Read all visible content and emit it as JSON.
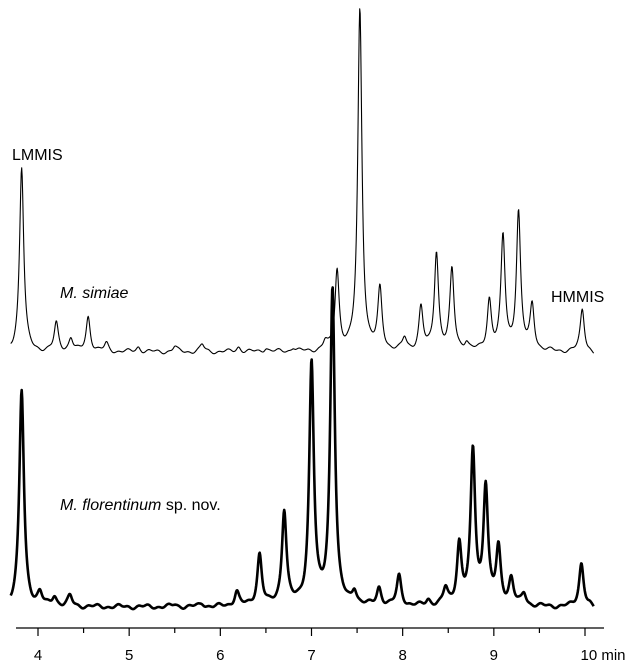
{
  "chart_data": {
    "type": "line",
    "xlabel": "",
    "ylabel": "",
    "x_unit": "min",
    "xlim": [
      3.7,
      10.1
    ],
    "x_ticks": [
      4,
      5,
      6,
      7,
      8,
      9,
      10
    ],
    "x_tick_labels": [
      "4",
      "5",
      "6",
      "7",
      "8",
      "9",
      "10 min"
    ],
    "grid": false,
    "legend": "none",
    "annotations": [
      {
        "text": "LMMIS",
        "x": 3.82
      },
      {
        "text": "HMMIS",
        "x": 9.97
      }
    ],
    "series": [
      {
        "name": "M. simiae",
        "baseline": 0,
        "peaks": [
          {
            "x": 3.82,
            "height": 185
          },
          {
            "x": 4.2,
            "height": 28
          },
          {
            "x": 4.36,
            "height": 13
          },
          {
            "x": 4.55,
            "height": 35
          },
          {
            "x": 4.75,
            "height": 8
          },
          {
            "x": 5.1,
            "height": 5
          },
          {
            "x": 5.5,
            "height": 5
          },
          {
            "x": 5.8,
            "height": 7
          },
          {
            "x": 6.2,
            "height": 5
          },
          {
            "x": 6.5,
            "height": 4
          },
          {
            "x": 6.8,
            "height": 4
          },
          {
            "x": 7.15,
            "height": 8
          },
          {
            "x": 7.28,
            "height": 80
          },
          {
            "x": 7.53,
            "height": 342
          },
          {
            "x": 7.75,
            "height": 60
          },
          {
            "x": 8.02,
            "height": 12
          },
          {
            "x": 8.2,
            "height": 43
          },
          {
            "x": 8.37,
            "height": 98
          },
          {
            "x": 8.54,
            "height": 80
          },
          {
            "x": 8.7,
            "height": 8
          },
          {
            "x": 8.95,
            "height": 50
          },
          {
            "x": 9.1,
            "height": 113
          },
          {
            "x": 9.27,
            "height": 138
          },
          {
            "x": 9.42,
            "height": 45
          },
          {
            "x": 9.97,
            "height": 42
          }
        ]
      },
      {
        "name": "M. florentinum sp. nov.",
        "baseline": 0,
        "peaks": [
          {
            "x": 3.82,
            "height": 216
          },
          {
            "x": 4.02,
            "height": 12
          },
          {
            "x": 4.18,
            "height": 10
          },
          {
            "x": 4.35,
            "height": 10
          },
          {
            "x": 5.5,
            "height": 2
          },
          {
            "x": 5.8,
            "height": 3
          },
          {
            "x": 6.18,
            "height": 15
          },
          {
            "x": 6.43,
            "height": 52
          },
          {
            "x": 6.7,
            "height": 95
          },
          {
            "x": 7.0,
            "height": 242
          },
          {
            "x": 7.23,
            "height": 318
          },
          {
            "x": 7.47,
            "height": 14
          },
          {
            "x": 7.74,
            "height": 18
          },
          {
            "x": 7.96,
            "height": 30
          },
          {
            "x": 8.28,
            "height": 6
          },
          {
            "x": 8.47,
            "height": 16
          },
          {
            "x": 8.62,
            "height": 60
          },
          {
            "x": 8.77,
            "height": 153
          },
          {
            "x": 8.91,
            "height": 117
          },
          {
            "x": 9.05,
            "height": 56
          },
          {
            "x": 9.19,
            "height": 26
          },
          {
            "x": 9.33,
            "height": 12
          },
          {
            "x": 9.96,
            "height": 44
          }
        ]
      }
    ]
  },
  "labels": {
    "lmmis": "LMMIS",
    "hmmis": "HMMIS",
    "simiae_label": "M. simiae",
    "florentinum_italic": "M. florentinum",
    "florentinum_rest": " sp. nov."
  }
}
